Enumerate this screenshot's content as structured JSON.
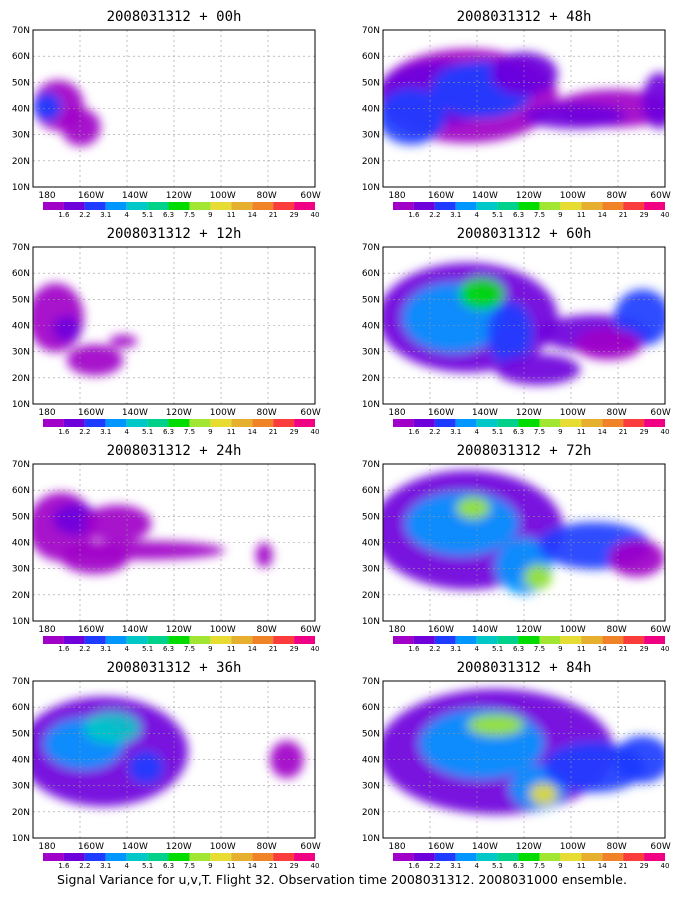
{
  "caption": "Signal Variance for u,v,T. Flight 32. Observation time 2008031312. 2008031000 ensemble.",
  "lat_labels": [
    "10N",
    "20N",
    "30N",
    "40N",
    "50N",
    "60N",
    "70N"
  ],
  "lon_labels": [
    "180",
    "160W",
    "140W",
    "120W",
    "100W",
    "80W",
    "60W"
  ],
  "colorbar": {
    "labels": [
      "1.6",
      "2.2",
      "3.1",
      "4",
      "5.1",
      "6.3",
      "7.5",
      "9",
      "11",
      "14",
      "21",
      "29",
      "40"
    ],
    "colors": [
      "#a000c8",
      "#6e00dc",
      "#1e3cff",
      "#0096ff",
      "#00c8c8",
      "#00d28c",
      "#00dc00",
      "#a0e632",
      "#e6dc32",
      "#e6af2d",
      "#f08228",
      "#fa3c3c",
      "#f00082"
    ]
  },
  "panels": [
    {
      "title": "2008031312 + 00h"
    },
    {
      "title": "2008031312 + 48h"
    },
    {
      "title": "2008031312 + 12h"
    },
    {
      "title": "2008031312 + 60h"
    },
    {
      "title": "2008031312 + 24h"
    },
    {
      "title": "2008031312 + 72h"
    },
    {
      "title": "2008031312 + 36h"
    },
    {
      "title": "2008031312 + 84h"
    }
  ],
  "map_extent": {
    "lon": [
      170,
      300
    ],
    "lat": [
      10,
      70
    ]
  }
}
